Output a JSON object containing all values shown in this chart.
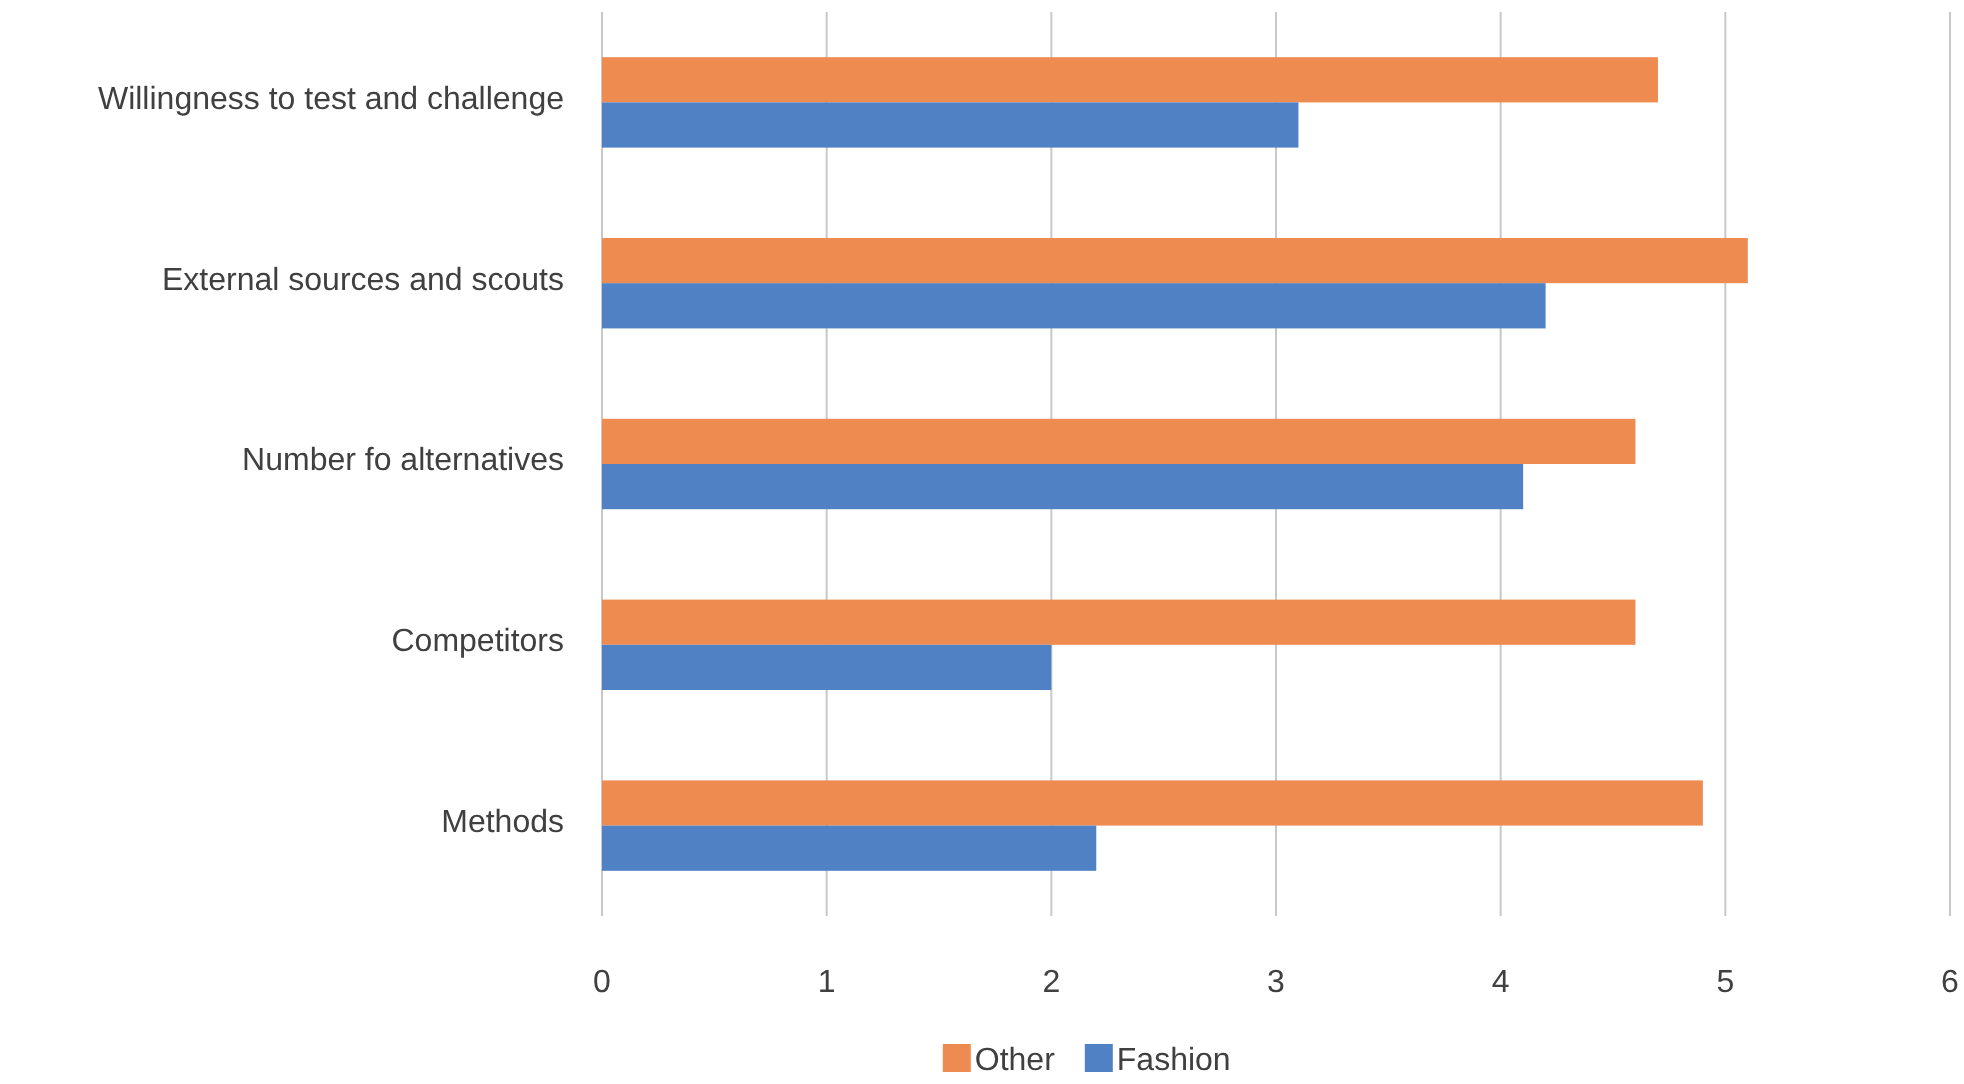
{
  "chart_data": {
    "type": "bar",
    "orientation": "horizontal",
    "categories": [
      "Willingness to test and challenge",
      "External sources and scouts",
      "Number fo alternatives",
      "Competitors",
      "Methods"
    ],
    "series": [
      {
        "name": "Other",
        "color": "#ed8b51",
        "values": [
          4.7,
          5.1,
          4.6,
          4.6,
          4.9
        ]
      },
      {
        "name": "Fashion",
        "color": "#4f81c4",
        "values": [
          3.1,
          4.2,
          4.1,
          2.0,
          2.2
        ]
      }
    ],
    "xlim": [
      0,
      6
    ],
    "xticks": [
      0,
      1,
      2,
      3,
      4,
      5,
      6
    ],
    "grid": "x",
    "legend": "bottom"
  }
}
